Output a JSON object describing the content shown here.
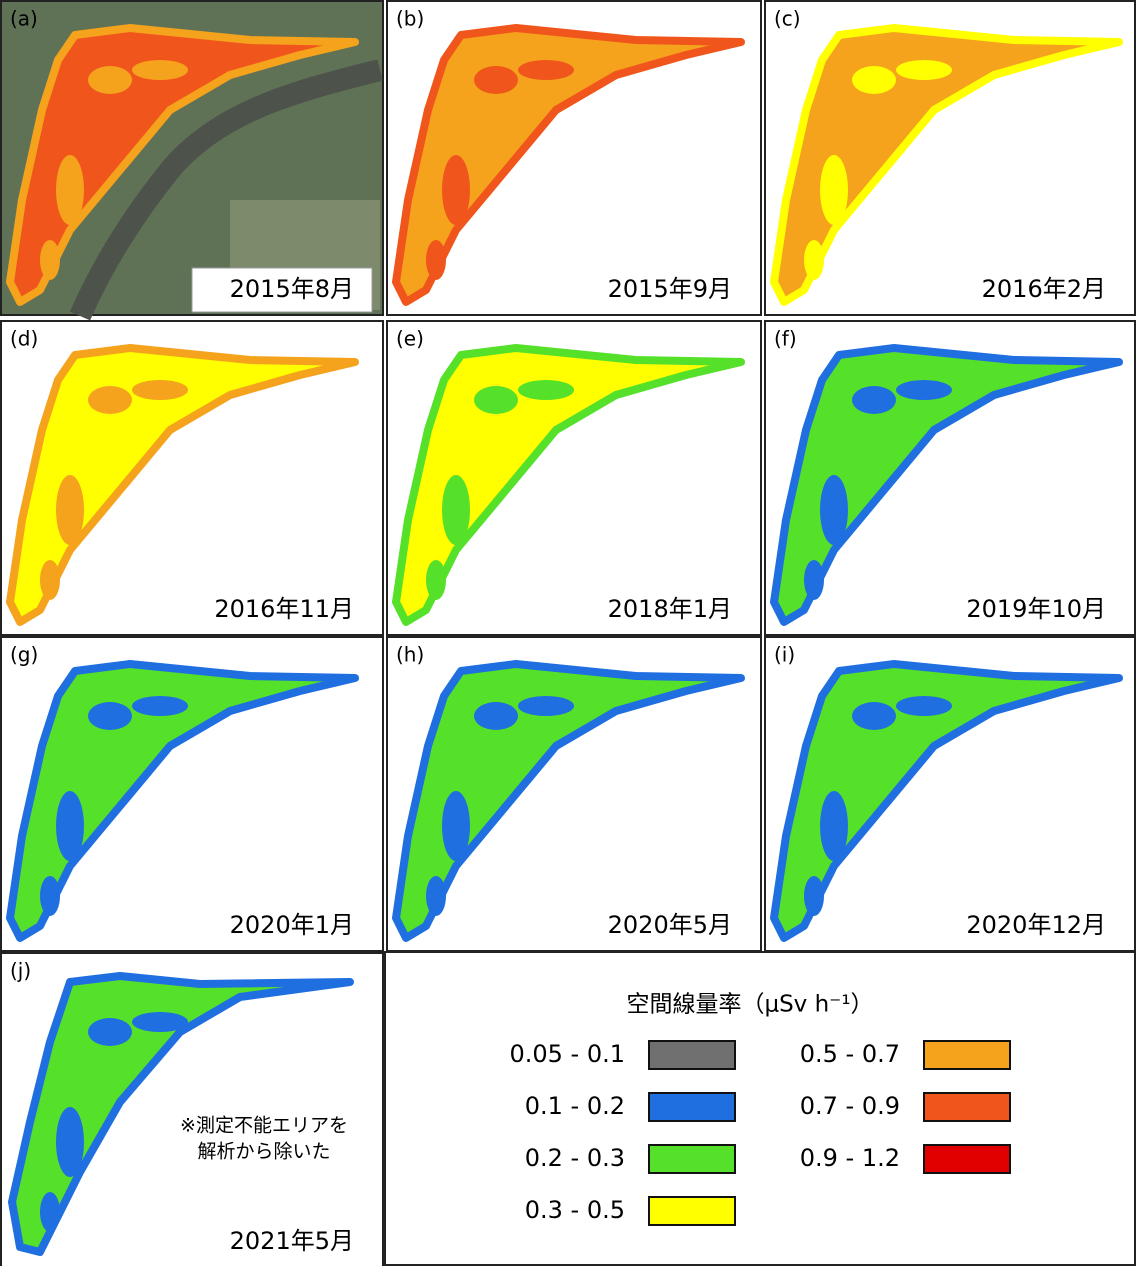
{
  "panels": [
    {
      "label": "(a)",
      "date": "2015年8月",
      "colors": [
        "#f0561c",
        "#f5a31c"
      ]
    },
    {
      "label": "(b)",
      "date": "2015年9月",
      "colors": [
        "#f5a31c",
        "#f0561c"
      ]
    },
    {
      "label": "(c)",
      "date": "2016年2月",
      "colors": [
        "#f5a31c",
        "#ffff00"
      ]
    },
    {
      "label": "(d)",
      "date": "2016年11月",
      "colors": [
        "#ffff00",
        "#f5a31c"
      ]
    },
    {
      "label": "(e)",
      "date": "2018年1月",
      "colors": [
        "#ffff00",
        "#55e02a"
      ]
    },
    {
      "label": "(f)",
      "date": "2019年10月",
      "colors": [
        "#55e02a",
        "#1f6fe0"
      ]
    },
    {
      "label": "(g)",
      "date": "2020年1月",
      "colors": [
        "#55e02a",
        "#1f6fe0"
      ]
    },
    {
      "label": "(h)",
      "date": "2020年5月",
      "colors": [
        "#55e02a",
        "#1f6fe0"
      ]
    },
    {
      "label": "(i)",
      "date": "2020年12月",
      "colors": [
        "#55e02a",
        "#1f6fe0"
      ]
    },
    {
      "label": "(j)",
      "date": "2021年5月",
      "colors": [
        "#55e02a",
        "#1f6fe0"
      ]
    }
  ],
  "legend": {
    "title": "空間線量率（μSv h⁻¹）",
    "items": [
      {
        "label": "0.05 - 0.1",
        "color": "#707070"
      },
      {
        "label": "0.1 - 0.2",
        "color": "#1f6fe0"
      },
      {
        "label": "0.2 - 0.3",
        "color": "#55e02a"
      },
      {
        "label": "0.3 - 0.5",
        "color": "#ffff00"
      },
      {
        "label": "0.5 - 0.7",
        "color": "#f5a31c"
      },
      {
        "label": "0.7 - 0.9",
        "color": "#f0561c"
      },
      {
        "label": "0.9 - 1.2",
        "color": "#e00000"
      }
    ]
  },
  "note": [
    "※測定不能エリアを",
    "解析から除いた"
  ]
}
